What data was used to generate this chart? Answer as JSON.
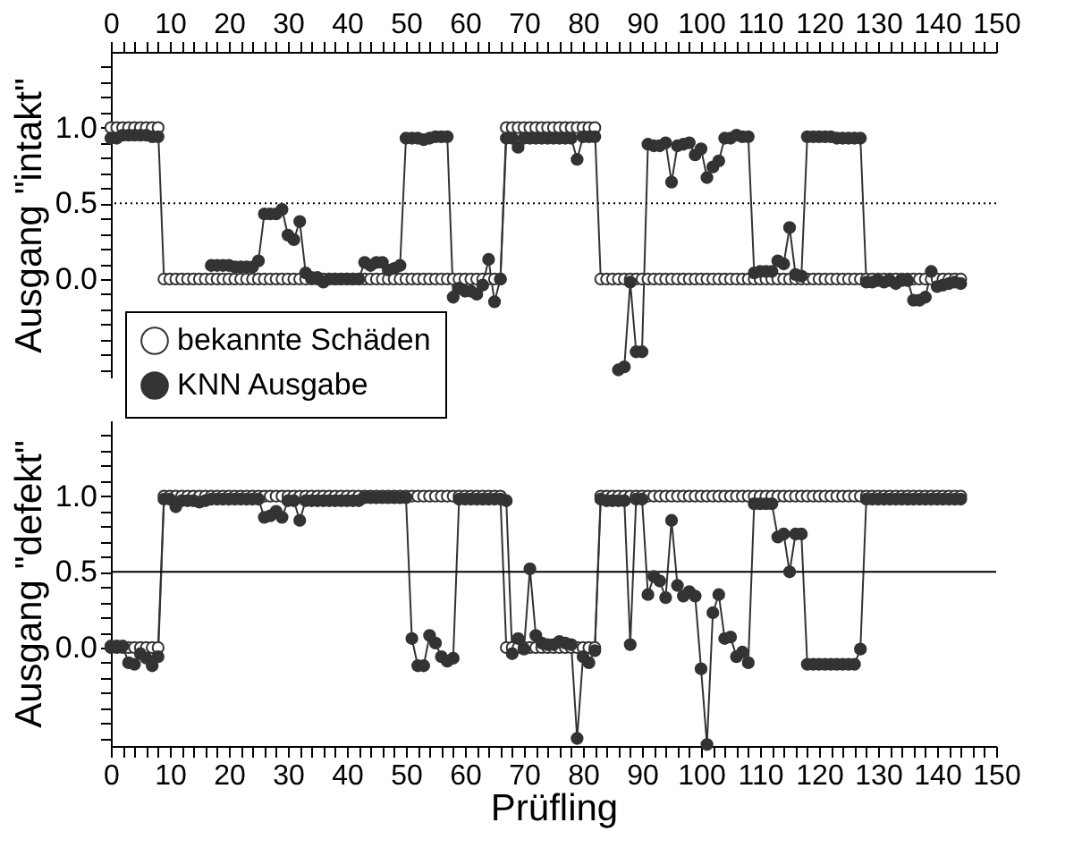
{
  "chart_data": [
    {
      "type": "line",
      "ylabel": "Ausgang \"intakt\"",
      "marker": "circle",
      "legend": "bottom left",
      "x": [
        0,
        1,
        2,
        3,
        4,
        5,
        6,
        7,
        8,
        9,
        10,
        11,
        12,
        13,
        14,
        15,
        16,
        17,
        18,
        19,
        20,
        21,
        22,
        23,
        24,
        25,
        26,
        27,
        28,
        29,
        30,
        31,
        32,
        33,
        34,
        35,
        36,
        37,
        38,
        39,
        40,
        41,
        42,
        43,
        44,
        45,
        46,
        47,
        48,
        49,
        50,
        51,
        52,
        53,
        54,
        55,
        56,
        57,
        58,
        59,
        60,
        61,
        62,
        63,
        64,
        65,
        66,
        67,
        68,
        69,
        70,
        71,
        72,
        73,
        74,
        75,
        76,
        77,
        78,
        79,
        80,
        81,
        82,
        83,
        84,
        85,
        86,
        87,
        88,
        89,
        90,
        91,
        92,
        93,
        94,
        95,
        96,
        97,
        98,
        99,
        100,
        101,
        102,
        103,
        104,
        105,
        106,
        107,
        108,
        109,
        110,
        111,
        112,
        113,
        114,
        115,
        116,
        117,
        118,
        119,
        120,
        121,
        122,
        123,
        124,
        125,
        126,
        127,
        128,
        129,
        130,
        131,
        132,
        133,
        134,
        135,
        136,
        137,
        138,
        139,
        140,
        141,
        142,
        143,
        144
      ],
      "series": [
        {
          "name": "bekannte Schäden",
          "color": "#ffffff",
          "values": [
            1,
            1,
            1,
            1,
            1,
            1,
            1,
            1,
            1,
            0,
            0,
            0,
            0,
            0,
            0,
            0,
            0,
            0,
            0,
            0,
            0,
            0,
            0,
            0,
            0,
            0,
            0,
            0,
            0,
            0,
            0,
            0,
            0,
            0,
            0,
            0,
            0,
            0,
            0,
            0,
            0,
            0,
            0,
            0,
            0,
            0,
            0,
            0,
            0,
            0,
            0,
            0,
            0,
            0,
            0,
            0,
            0,
            0,
            0,
            0,
            0,
            0,
            0,
            0,
            0,
            0,
            0,
            1,
            1,
            1,
            1,
            1,
            1,
            1,
            1,
            1,
            1,
            1,
            1,
            1,
            1,
            1,
            1,
            0,
            0,
            0,
            0,
            0,
            0,
            0,
            0,
            0,
            0,
            0,
            0,
            0,
            0,
            0,
            0,
            0,
            0,
            0,
            0,
            0,
            0,
            0,
            0,
            0,
            0,
            0,
            0,
            0,
            0,
            0,
            0,
            0,
            0,
            0,
            0,
            0,
            0,
            0,
            0,
            0,
            0,
            0,
            0,
            0,
            0,
            0,
            0,
            0,
            0,
            0,
            0,
            0,
            0,
            0,
            0,
            0,
            0,
            0,
            0,
            0,
            0
          ]
        },
        {
          "name": "KNN Ausgabe",
          "color": "#333333",
          "values": [
            0.93,
            0.93,
            0.95,
            0.95,
            0.95,
            0.95,
            0.95,
            0.94,
            0.94,
            null,
            null,
            null,
            null,
            null,
            null,
            null,
            null,
            0.09,
            0.09,
            0.09,
            0.09,
            0.08,
            0.08,
            0.08,
            0.08,
            0.12,
            0.43,
            0.43,
            0.43,
            0.46,
            0.29,
            0.26,
            0.38,
            0.04,
            0.01,
            0.01,
            -0.02,
            0,
            0,
            0,
            0,
            0,
            0,
            0.11,
            0.09,
            0.11,
            0.11,
            0.06,
            0.07,
            0.09,
            0.93,
            0.93,
            0.93,
            0.92,
            0.93,
            0.94,
            0.94,
            0.94,
            -0.12,
            -0.06,
            -0.08,
            -0.08,
            -0.1,
            -0.04,
            0.13,
            -0.15,
            0.0,
            0.93,
            0.93,
            0.87,
            0.93,
            0.93,
            0.93,
            0.93,
            0.93,
            0.93,
            0.93,
            0.93,
            0.93,
            0.79,
            0.94,
            0.94,
            0.94,
            null,
            null,
            null,
            -0.6,
            -0.58,
            -0.02,
            -0.48,
            -0.48,
            0.89,
            0.88,
            0.88,
            0.9,
            0.64,
            0.88,
            0.89,
            0.9,
            0.82,
            0.86,
            0.67,
            0.74,
            0.78,
            0.93,
            0.93,
            0.95,
            0.94,
            0.94,
            0.04,
            0.05,
            0.05,
            0.05,
            0.12,
            0.1,
            0.34,
            0.03,
            0.02,
            0.94,
            0.94,
            0.94,
            0.94,
            0.94,
            0.93,
            0.93,
            0.93,
            0.93,
            0.93,
            -0.02,
            -0.02,
            -0.01,
            -0.02,
            -0.01,
            -0.03,
            -0.01,
            -0.01,
            -0.14,
            -0.14,
            -0.12,
            0.05,
            -0.05,
            -0.04,
            -0.03,
            -0.02,
            -0.03
          ]
        }
      ],
      "xlim": [
        0,
        150
      ],
      "xticks": [
        0,
        {
          "value": 2,
          "label": null
        },
        {
          "value": 4,
          "label": null
        },
        {
          "value": 6,
          "label": null
        },
        {
          "value": 8,
          "label": null
        },
        10,
        {
          "value": 12,
          "label": null
        },
        {
          "value": 14,
          "label": null
        },
        {
          "value": 16,
          "label": null
        },
        {
          "value": 18,
          "label": null
        },
        20,
        {
          "value": 22,
          "label": null
        },
        {
          "value": 24,
          "label": null
        },
        {
          "value": 26,
          "label": null
        },
        {
          "value": 28,
          "label": null
        },
        30,
        {
          "value": 32,
          "label": null
        },
        {
          "value": 34,
          "label": null
        },
        {
          "value": 36,
          "label": null
        },
        {
          "value": 38,
          "label": null
        },
        40,
        {
          "value": 42,
          "label": null
        },
        {
          "value": 44,
          "label": null
        },
        {
          "value": 46,
          "label": null
        },
        {
          "value": 48,
          "label": null
        },
        50,
        {
          "value": 52,
          "label": null
        },
        {
          "value": 54,
          "label": null
        },
        {
          "value": 56,
          "label": null
        },
        {
          "value": 58,
          "label": null
        },
        60,
        {
          "value": 62,
          "label": null
        },
        {
          "value": 64,
          "label": null
        },
        {
          "value": 66,
          "label": null
        },
        {
          "value": 68,
          "label": null
        },
        70,
        {
          "value": 72,
          "label": null
        },
        {
          "value": 74,
          "label": null
        },
        {
          "value": 76,
          "label": null
        },
        {
          "value": 78,
          "label": null
        },
        80,
        {
          "value": 82,
          "label": null
        },
        {
          "value": 84,
          "label": null
        },
        {
          "value": 86,
          "label": null
        },
        {
          "value": 88,
          "label": null
        },
        90,
        {
          "value": 92,
          "label": null
        },
        {
          "value": 94,
          "label": null
        },
        {
          "value": 96,
          "label": null
        },
        {
          "value": 98,
          "label": null
        },
        100,
        {
          "value": 102,
          "label": null
        },
        {
          "value": 104,
          "label": null
        },
        {
          "value": 106,
          "label": null
        },
        {
          "value": 108,
          "label": null
        },
        110,
        {
          "value": 112,
          "label": null
        },
        {
          "value": 114,
          "label": null
        },
        {
          "value": 116,
          "label": null
        },
        {
          "value": 118,
          "label": null
        },
        120,
        {
          "value": 122,
          "label": null
        },
        {
          "value": 124,
          "label": null
        },
        {
          "value": 126,
          "label": null
        },
        {
          "value": 128,
          "label": null
        },
        130,
        {
          "value": 132,
          "label": null
        },
        {
          "value": 134,
          "label": null
        },
        {
          "value": 136,
          "label": null
        },
        {
          "value": 138,
          "label": null
        },
        140,
        {
          "value": 142,
          "label": null
        },
        {
          "value": 144,
          "label": null
        },
        {
          "value": 146,
          "label": null
        },
        {
          "value": 148,
          "label": null
        },
        150
      ],
      "ylim": [
        -0.65,
        1.5
      ],
      "yticks": [
        {
          "value": -0.6,
          "label": null
        },
        {
          "value": -0.5,
          "label": null
        },
        {
          "value": -0.4,
          "label": null
        },
        {
          "value": -0.3,
          "label": null
        },
        {
          "value": -0.2,
          "label": null
        },
        {
          "value": -0.1,
          "label": null
        },
        {
          "value": 0,
          "label": "0.0"
        },
        {
          "value": 0.1,
          "label": null
        },
        {
          "value": 0.2,
          "label": null
        },
        {
          "value": 0.3,
          "label": null
        },
        {
          "value": 0.4,
          "label": null
        },
        {
          "value": 0.5,
          "label": "0.5"
        },
        {
          "value": 0.6,
          "label": null
        },
        {
          "value": 0.7,
          "label": null
        },
        {
          "value": 0.8,
          "label": null
        },
        {
          "value": 0.9,
          "label": null
        },
        {
          "value": 1,
          "label": "1.0"
        },
        {
          "value": 1.1,
          "label": null
        },
        {
          "value": 1.2,
          "label": null
        },
        {
          "value": 1.3,
          "label": null
        },
        {
          "value": 1.4,
          "label": null
        }
      ],
      "ref_lines": [
        {
          "axis": "y",
          "value": 0.5,
          "line_style": "dotted"
        }
      ]
    },
    {
      "type": "line",
      "ylabel": "Ausgang \"defekt\"",
      "xlabel": "Prüfling",
      "marker": "circle",
      "x": [
        0,
        1,
        2,
        3,
        4,
        5,
        6,
        7,
        8,
        9,
        10,
        11,
        12,
        13,
        14,
        15,
        16,
        17,
        18,
        19,
        20,
        21,
        22,
        23,
        24,
        25,
        26,
        27,
        28,
        29,
        30,
        31,
        32,
        33,
        34,
        35,
        36,
        37,
        38,
        39,
        40,
        41,
        42,
        43,
        44,
        45,
        46,
        47,
        48,
        49,
        50,
        51,
        52,
        53,
        54,
        55,
        56,
        57,
        58,
        59,
        60,
        61,
        62,
        63,
        64,
        65,
        66,
        67,
        68,
        69,
        70,
        71,
        72,
        73,
        74,
        75,
        76,
        77,
        78,
        79,
        80,
        81,
        82,
        83,
        84,
        85,
        86,
        87,
        88,
        89,
        90,
        91,
        92,
        93,
        94,
        95,
        96,
        97,
        98,
        99,
        100,
        101,
        102,
        103,
        104,
        105,
        106,
        107,
        108,
        109,
        110,
        111,
        112,
        113,
        114,
        115,
        116,
        117,
        118,
        119,
        120,
        121,
        122,
        123,
        124,
        125,
        126,
        127,
        128,
        129,
        130,
        131,
        132,
        133,
        134,
        135,
        136,
        137,
        138,
        139,
        140,
        141,
        142,
        143,
        144
      ],
      "series": [
        {
          "color": "#ffffff",
          "values": [
            0,
            0,
            0,
            0,
            0,
            0,
            0,
            0,
            0,
            1,
            1,
            1,
            1,
            1,
            1,
            1,
            1,
            1,
            1,
            1,
            1,
            1,
            1,
            1,
            1,
            1,
            1,
            1,
            1,
            1,
            1,
            1,
            1,
            1,
            1,
            1,
            1,
            1,
            1,
            1,
            1,
            1,
            1,
            1,
            1,
            1,
            1,
            1,
            1,
            1,
            1,
            1,
            1,
            1,
            1,
            1,
            1,
            1,
            1,
            1,
            1,
            1,
            1,
            1,
            1,
            1,
            1,
            0,
            0,
            0,
            0,
            0,
            0,
            0,
            0,
            0,
            0,
            0,
            0,
            0,
            0,
            0,
            0,
            1,
            1,
            1,
            1,
            1,
            1,
            1,
            1,
            1,
            1,
            1,
            1,
            1,
            1,
            1,
            1,
            1,
            1,
            1,
            1,
            1,
            1,
            1,
            1,
            1,
            1,
            1,
            1,
            1,
            1,
            1,
            1,
            1,
            1,
            1,
            1,
            1,
            1,
            1,
            1,
            1,
            1,
            1,
            1,
            1,
            1,
            1,
            1,
            1,
            1,
            1,
            1,
            1,
            1,
            1,
            1,
            1,
            1,
            1,
            1,
            1,
            1
          ]
        },
        {
          "color": "#333333",
          "values": [
            0.01,
            0.01,
            0.01,
            -0.1,
            -0.11,
            -0.04,
            -0.07,
            -0.12,
            -0.06,
            0.98,
            0.98,
            0.93,
            0.97,
            0.97,
            0.97,
            0.96,
            0.97,
            0.98,
            0.98,
            0.98,
            0.98,
            0.98,
            0.98,
            0.98,
            0.98,
            0.98,
            0.86,
            0.87,
            0.9,
            0.86,
            0.97,
            0.97,
            0.84,
            0.97,
            0.97,
            0.97,
            0.97,
            0.97,
            0.97,
            0.97,
            0.97,
            0.97,
            0.97,
            0.99,
            0.99,
            0.99,
            0.99,
            0.99,
            0.99,
            0.99,
            0.99,
            0.06,
            -0.12,
            -0.12,
            0.08,
            0.03,
            -0.06,
            -0.09,
            -0.07,
            0.98,
            0.98,
            0.98,
            0.98,
            0.98,
            0.98,
            0.98,
            0.98,
            0.97,
            -0.04,
            0.06,
            -0.01,
            0.52,
            0.08,
            0.03,
            0.02,
            0.02,
            0.04,
            0.03,
            0.02,
            -0.6,
            -0.06,
            -0.1,
            -0.02,
            0.98,
            0.97,
            0.97,
            0.97,
            0.97,
            0.02,
            0.98,
            0.98,
            0.35,
            0.47,
            0.44,
            0.33,
            0.84,
            0.41,
            0.34,
            0.37,
            0.34,
            -0.14,
            -0.64,
            0.23,
            0.35,
            0.06,
            0.07,
            -0.06,
            -0.03,
            -0.1,
            0.95,
            0.95,
            0.95,
            0.95,
            0.73,
            0.75,
            0.5,
            0.75,
            0.75,
            -0.11,
            -0.11,
            -0.11,
            -0.11,
            -0.11,
            -0.11,
            -0.11,
            -0.11,
            -0.11,
            -0.01,
            0.98,
            0.98,
            0.98,
            0.98,
            0.98,
            0.98,
            0.98,
            0.98,
            0.98,
            0.98,
            0.98,
            0.98,
            0.98,
            0.98,
            0.98,
            0.98,
            0.98
          ]
        }
      ],
      "xlim": [
        0,
        150
      ],
      "xticks": [
        0,
        {
          "value": 2,
          "label": null
        },
        {
          "value": 4,
          "label": null
        },
        {
          "value": 6,
          "label": null
        },
        {
          "value": 8,
          "label": null
        },
        10,
        {
          "value": 12,
          "label": null
        },
        {
          "value": 14,
          "label": null
        },
        {
          "value": 16,
          "label": null
        },
        {
          "value": 18,
          "label": null
        },
        20,
        {
          "value": 22,
          "label": null
        },
        {
          "value": 24,
          "label": null
        },
        {
          "value": 26,
          "label": null
        },
        {
          "value": 28,
          "label": null
        },
        30,
        {
          "value": 32,
          "label": null
        },
        {
          "value": 34,
          "label": null
        },
        {
          "value": 36,
          "label": null
        },
        {
          "value": 38,
          "label": null
        },
        40,
        {
          "value": 42,
          "label": null
        },
        {
          "value": 44,
          "label": null
        },
        {
          "value": 46,
          "label": null
        },
        {
          "value": 48,
          "label": null
        },
        50,
        {
          "value": 52,
          "label": null
        },
        {
          "value": 54,
          "label": null
        },
        {
          "value": 56,
          "label": null
        },
        {
          "value": 58,
          "label": null
        },
        60,
        {
          "value": 62,
          "label": null
        },
        {
          "value": 64,
          "label": null
        },
        {
          "value": 66,
          "label": null
        },
        {
          "value": 68,
          "label": null
        },
        70,
        {
          "value": 72,
          "label": null
        },
        {
          "value": 74,
          "label": null
        },
        {
          "value": 76,
          "label": null
        },
        {
          "value": 78,
          "label": null
        },
        80,
        {
          "value": 82,
          "label": null
        },
        {
          "value": 84,
          "label": null
        },
        {
          "value": 86,
          "label": null
        },
        {
          "value": 88,
          "label": null
        },
        90,
        {
          "value": 92,
          "label": null
        },
        {
          "value": 94,
          "label": null
        },
        {
          "value": 96,
          "label": null
        },
        {
          "value": 98,
          "label": null
        },
        100,
        {
          "value": 102,
          "label": null
        },
        {
          "value": 104,
          "label": null
        },
        {
          "value": 106,
          "label": null
        },
        {
          "value": 108,
          "label": null
        },
        110,
        {
          "value": 112,
          "label": null
        },
        {
          "value": 114,
          "label": null
        },
        {
          "value": 116,
          "label": null
        },
        {
          "value": 118,
          "label": null
        },
        120,
        {
          "value": 122,
          "label": null
        },
        {
          "value": 124,
          "label": null
        },
        {
          "value": 126,
          "label": null
        },
        {
          "value": 128,
          "label": null
        },
        130,
        {
          "value": 132,
          "label": null
        },
        {
          "value": 134,
          "label": null
        },
        {
          "value": 136,
          "label": null
        },
        {
          "value": 138,
          "label": null
        },
        140,
        {
          "value": 142,
          "label": null
        },
        {
          "value": 144,
          "label": null
        },
        {
          "value": 146,
          "label": null
        },
        {
          "value": 148,
          "label": null
        },
        150
      ],
      "ylim": [
        -0.65,
        1.5
      ],
      "yticks": [
        {
          "value": -0.6,
          "label": null
        },
        {
          "value": -0.5,
          "label": null
        },
        {
          "value": -0.4,
          "label": null
        },
        {
          "value": -0.3,
          "label": null
        },
        {
          "value": -0.2,
          "label": null
        },
        {
          "value": -0.1,
          "label": null
        },
        {
          "value": 0,
          "label": "0.0"
        },
        {
          "value": 0.1,
          "label": null
        },
        {
          "value": 0.2,
          "label": null
        },
        {
          "value": 0.3,
          "label": null
        },
        {
          "value": 0.4,
          "label": null
        },
        {
          "value": 0.5,
          "label": "0.5"
        },
        {
          "value": 0.6,
          "label": null
        },
        {
          "value": 0.7,
          "label": null
        },
        {
          "value": 0.8,
          "label": null
        },
        {
          "value": 0.9,
          "label": null
        },
        {
          "value": 1,
          "label": "1.0"
        },
        {
          "value": 1.1,
          "label": null
        },
        {
          "value": 1.2,
          "label": null
        },
        {
          "value": 1.3,
          "label": null
        },
        {
          "value": 1.4,
          "label": null
        }
      ],
      "ref_lines": [
        {
          "axis": "y",
          "value": 0.5,
          "line_style": "solid"
        }
      ]
    }
  ]
}
